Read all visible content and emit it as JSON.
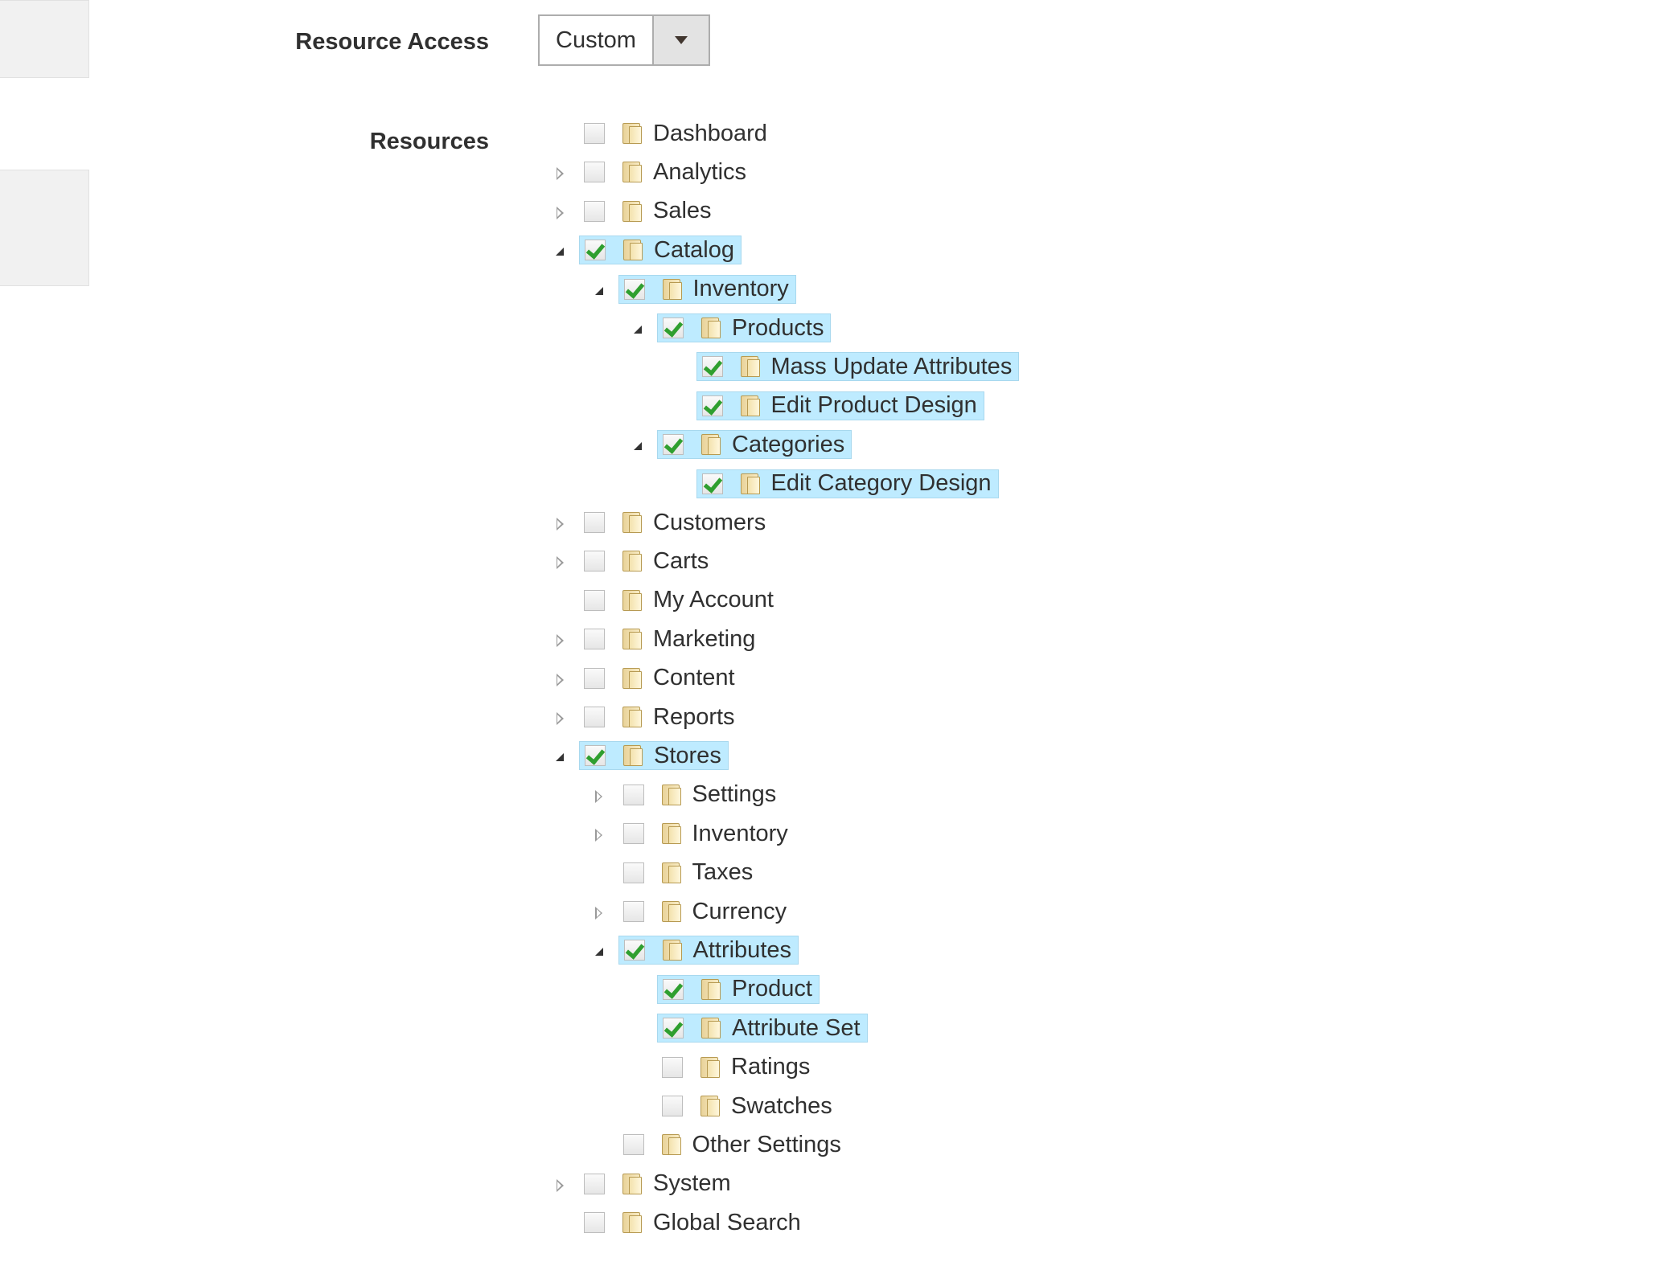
{
  "form": {
    "resource_access_label": "Resource Access",
    "resources_label": "Resources",
    "resource_access_value": "Custom"
  },
  "tree": [
    {
      "label": "Dashboard",
      "level": 0,
      "toggle": "none",
      "checked": false
    },
    {
      "label": "Analytics",
      "level": 0,
      "toggle": "closed",
      "checked": false
    },
    {
      "label": "Sales",
      "level": 0,
      "toggle": "closed",
      "checked": false
    },
    {
      "label": "Catalog",
      "level": 0,
      "toggle": "open",
      "checked": true
    },
    {
      "label": "Inventory",
      "level": 1,
      "toggle": "open",
      "checked": true
    },
    {
      "label": "Products",
      "level": 2,
      "toggle": "open",
      "checked": true
    },
    {
      "label": "Mass Update Attributes",
      "level": 3,
      "toggle": "none",
      "checked": true
    },
    {
      "label": "Edit Product Design",
      "level": 3,
      "toggle": "none",
      "checked": true
    },
    {
      "label": "Categories",
      "level": 2,
      "toggle": "open",
      "checked": true
    },
    {
      "label": "Edit Category Design",
      "level": 3,
      "toggle": "none",
      "checked": true
    },
    {
      "label": "Customers",
      "level": 0,
      "toggle": "closed",
      "checked": false
    },
    {
      "label": "Carts",
      "level": 0,
      "toggle": "closed",
      "checked": false
    },
    {
      "label": "My Account",
      "level": 0,
      "toggle": "none",
      "checked": false
    },
    {
      "label": "Marketing",
      "level": 0,
      "toggle": "closed",
      "checked": false
    },
    {
      "label": "Content",
      "level": 0,
      "toggle": "closed",
      "checked": false
    },
    {
      "label": "Reports",
      "level": 0,
      "toggle": "closed",
      "checked": false
    },
    {
      "label": "Stores",
      "level": 0,
      "toggle": "open",
      "checked": true
    },
    {
      "label": "Settings",
      "level": 1,
      "toggle": "closed",
      "checked": false
    },
    {
      "label": "Inventory",
      "level": 1,
      "toggle": "closed",
      "checked": false
    },
    {
      "label": "Taxes",
      "level": 1,
      "toggle": "none",
      "checked": false
    },
    {
      "label": "Currency",
      "level": 1,
      "toggle": "closed",
      "checked": false
    },
    {
      "label": "Attributes",
      "level": 1,
      "toggle": "open",
      "checked": true
    },
    {
      "label": "Product",
      "level": 2,
      "toggle": "none",
      "checked": true
    },
    {
      "label": "Attribute Set",
      "level": 2,
      "toggle": "none",
      "checked": true
    },
    {
      "label": "Ratings",
      "level": 2,
      "toggle": "none",
      "checked": false
    },
    {
      "label": "Swatches",
      "level": 2,
      "toggle": "none",
      "checked": false
    },
    {
      "label": "Other Settings",
      "level": 1,
      "toggle": "none",
      "checked": false
    },
    {
      "label": "System",
      "level": 0,
      "toggle": "closed",
      "checked": false
    },
    {
      "label": "Global Search",
      "level": 0,
      "toggle": "none",
      "checked": false
    }
  ]
}
